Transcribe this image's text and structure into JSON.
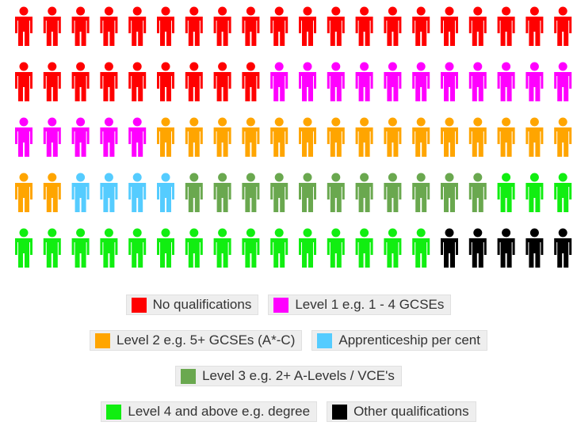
{
  "chart_data": {
    "type": "pictogram",
    "categories": [
      "No qualifications",
      "Level 1 e.g. 1 - 4 GCSEs",
      "Level 2 e.g. 5+ GCSEs (A*-C)",
      "Apprenticeship per cent",
      "Level 3 e.g. 2+ A-Levels / VCE's",
      "Level 4 and above e.g. degree",
      "Other qualifications"
    ],
    "values": [
      29,
      16,
      17,
      4,
      11,
      18,
      5
    ],
    "colors": [
      "#ff0000",
      "#ff00ff",
      "#ffa500",
      "#55ccff",
      "#6aa84f",
      "#11ee11",
      "#000000"
    ]
  }
}
